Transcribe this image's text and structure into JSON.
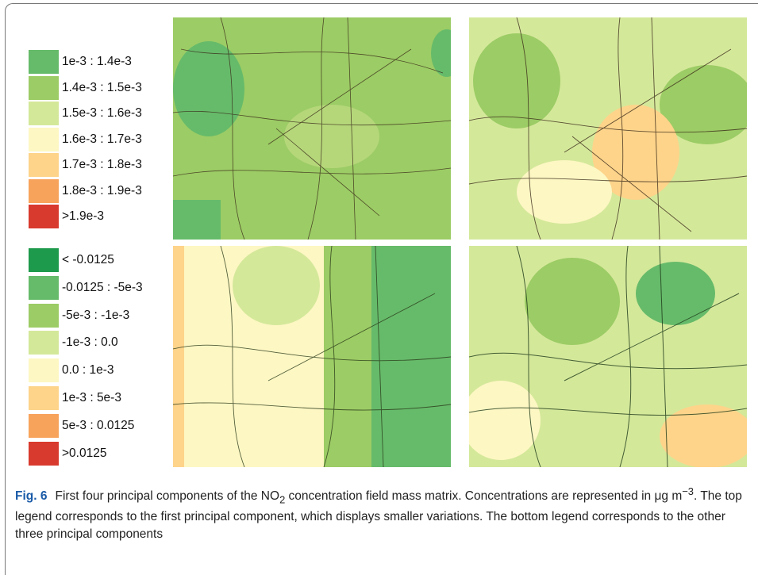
{
  "legends": [
    {
      "items": [
        {
          "label": "1e-3 : 1.4e-3",
          "color": "#66bb6a"
        },
        {
          "label": "1.4e-3 : 1.5e-3",
          "color": "#9ccc65"
        },
        {
          "label": "1.5e-3 : 1.6e-3",
          "color": "#d4e89a"
        },
        {
          "label": "1.6e-3 : 1.7e-3",
          "color": "#fdf7c3"
        },
        {
          "label": "1.7e-3 : 1.8e-3",
          "color": "#fdd48a"
        },
        {
          "label": "1.8e-3 : 1.9e-3",
          "color": "#f7a35c"
        },
        {
          "label": ">1.9e-3",
          "color": "#d83a2e"
        }
      ]
    },
    {
      "items": [
        {
          "label": "< -0.0125",
          "color": "#1e9a4c"
        },
        {
          "label": "-0.0125 : -5e-3",
          "color": "#66bb6a"
        },
        {
          "label": "-5e-3 : -1e-3",
          "color": "#9ccc65"
        },
        {
          "label": "-1e-3 : 0.0",
          "color": "#d4e89a"
        },
        {
          "label": "0.0 : 1e-3",
          "color": "#fdf7c3"
        },
        {
          "label": "1e-3 : 5e-3",
          "color": "#fdd48a"
        },
        {
          "label": "5e-3 : 0.0125",
          "color": "#f7a35c"
        },
        {
          "label": ">0.0125",
          "color": "#d83a2e"
        }
      ]
    }
  ],
  "caption": {
    "label": "Fig. 6",
    "parts": [
      "First four principal components of the NO",
      "2",
      " concentration field mass matrix. Concentrations are represented in ",
      "μg m",
      "−3",
      ". The top legend corresponds to the first principal component, which displays smaller variations. The bottom legend corresponds to the other three principal components"
    ]
  }
}
